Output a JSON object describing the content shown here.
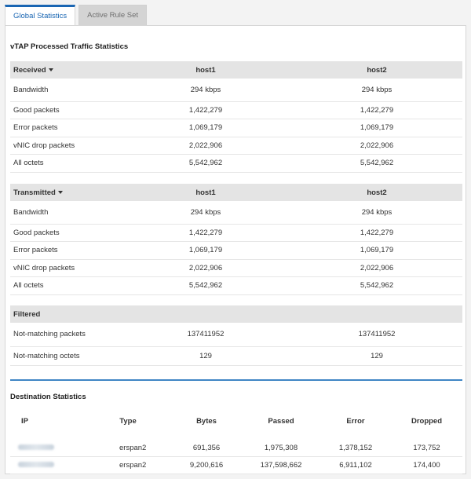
{
  "tabs": [
    {
      "label": "Global Statistics",
      "active": true
    },
    {
      "label": "Active Rule Set",
      "active": false
    }
  ],
  "vtap": {
    "title": "vTAP Processed Traffic Statistics",
    "hosts": [
      "host1",
      "host2"
    ],
    "received": {
      "header": "Received",
      "rows": [
        {
          "label": "Bandwidth",
          "host1": "294 kbps",
          "host2": "294 kbps"
        },
        {
          "label": "Good packets",
          "host1": "1,422,279",
          "host2": "1,422,279"
        },
        {
          "label": "Error packets",
          "host1": "1,069,179",
          "host2": "1,069,179"
        },
        {
          "label": "vNIC drop packets",
          "host1": "2,022,906",
          "host2": "2,022,906"
        },
        {
          "label": "All octets",
          "host1": "5,542,962",
          "host2": "5,542,962"
        }
      ]
    },
    "transmitted": {
      "header": "Transmitted",
      "rows": [
        {
          "label": "Bandwidth",
          "host1": "294 kbps",
          "host2": "294 kbps"
        },
        {
          "label": "Good packets",
          "host1": "1,422,279",
          "host2": "1,422,279"
        },
        {
          "label": "Error packets",
          "host1": "1,069,179",
          "host2": "1,069,179"
        },
        {
          "label": "vNIC drop packets",
          "host1": "2,022,906",
          "host2": "2,022,906"
        },
        {
          "label": "All octets",
          "host1": "5,542,962",
          "host2": "5,542,962"
        }
      ]
    },
    "filtered": {
      "header": "Filtered",
      "rows": [
        {
          "label": "Not-matching packets",
          "host1": "137411952",
          "host2": "137411952"
        },
        {
          "label": "Not-matching octets",
          "host1": "129",
          "host2": "129"
        }
      ]
    }
  },
  "destination": {
    "title": "Destination Statistics",
    "columns": [
      "IP",
      "Type",
      "Bytes",
      "Passed",
      "Error",
      "Dropped"
    ],
    "rows": [
      {
        "ip_redacted": true,
        "type": "erspan2",
        "bytes": "691,356",
        "passed": "1,975,308",
        "error": "1,378,152",
        "dropped": "173,752"
      },
      {
        "ip_redacted": true,
        "type": "erspan2",
        "bytes": "9,200,616",
        "passed": "137,598,662",
        "error": "6,911,102",
        "dropped": "174,400"
      }
    ]
  },
  "colors": {
    "accent": "#1a66b3",
    "rule": "#3f85c4",
    "header_bg": "#e4e4e4"
  }
}
